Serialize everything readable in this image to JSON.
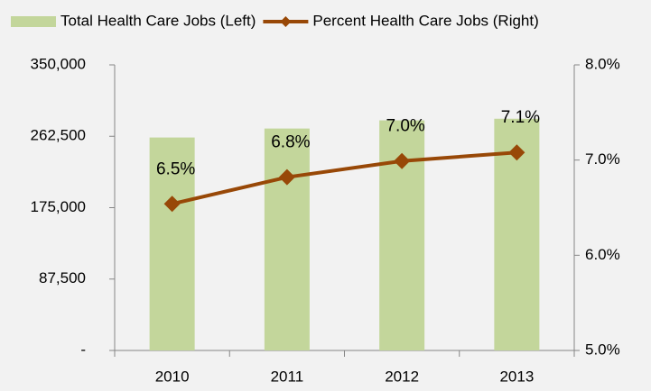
{
  "chart_data": {
    "type": "bar-line",
    "categories": [
      "2010",
      "2011",
      "2012",
      "2013"
    ],
    "series": [
      {
        "name": "Total Health Care Jobs (Left)",
        "type": "bar",
        "color": "#c3d69b",
        "values": [
          261000,
          272000,
          282000,
          284000
        ]
      },
      {
        "name": "Percent Health Care Jobs (Right)",
        "type": "line",
        "axis": "y2",
        "color": "#984807",
        "values": [
          6.54,
          6.82,
          6.99,
          7.08
        ],
        "value_labels": [
          "6.5%",
          "6.8%",
          "7.0%",
          "7.1%"
        ]
      }
    ],
    "ylim": [
      0,
      350000
    ],
    "yticks": [
      {
        "value": 0,
        "label": "-"
      },
      {
        "value": 87500,
        "label": "87,500"
      },
      {
        "value": 175000,
        "label": "175,000"
      },
      {
        "value": 262500,
        "label": "262,500"
      },
      {
        "value": 350000,
        "label": "350,000"
      }
    ],
    "y2lim": [
      5.0,
      8.0
    ],
    "y2ticks": [
      {
        "value": 5.0,
        "label": "5.0%"
      },
      {
        "value": 6.0,
        "label": "6.0%"
      },
      {
        "value": 7.0,
        "label": "7.0%"
      },
      {
        "value": 8.0,
        "label": "8.0%"
      }
    ],
    "legend": "top"
  }
}
